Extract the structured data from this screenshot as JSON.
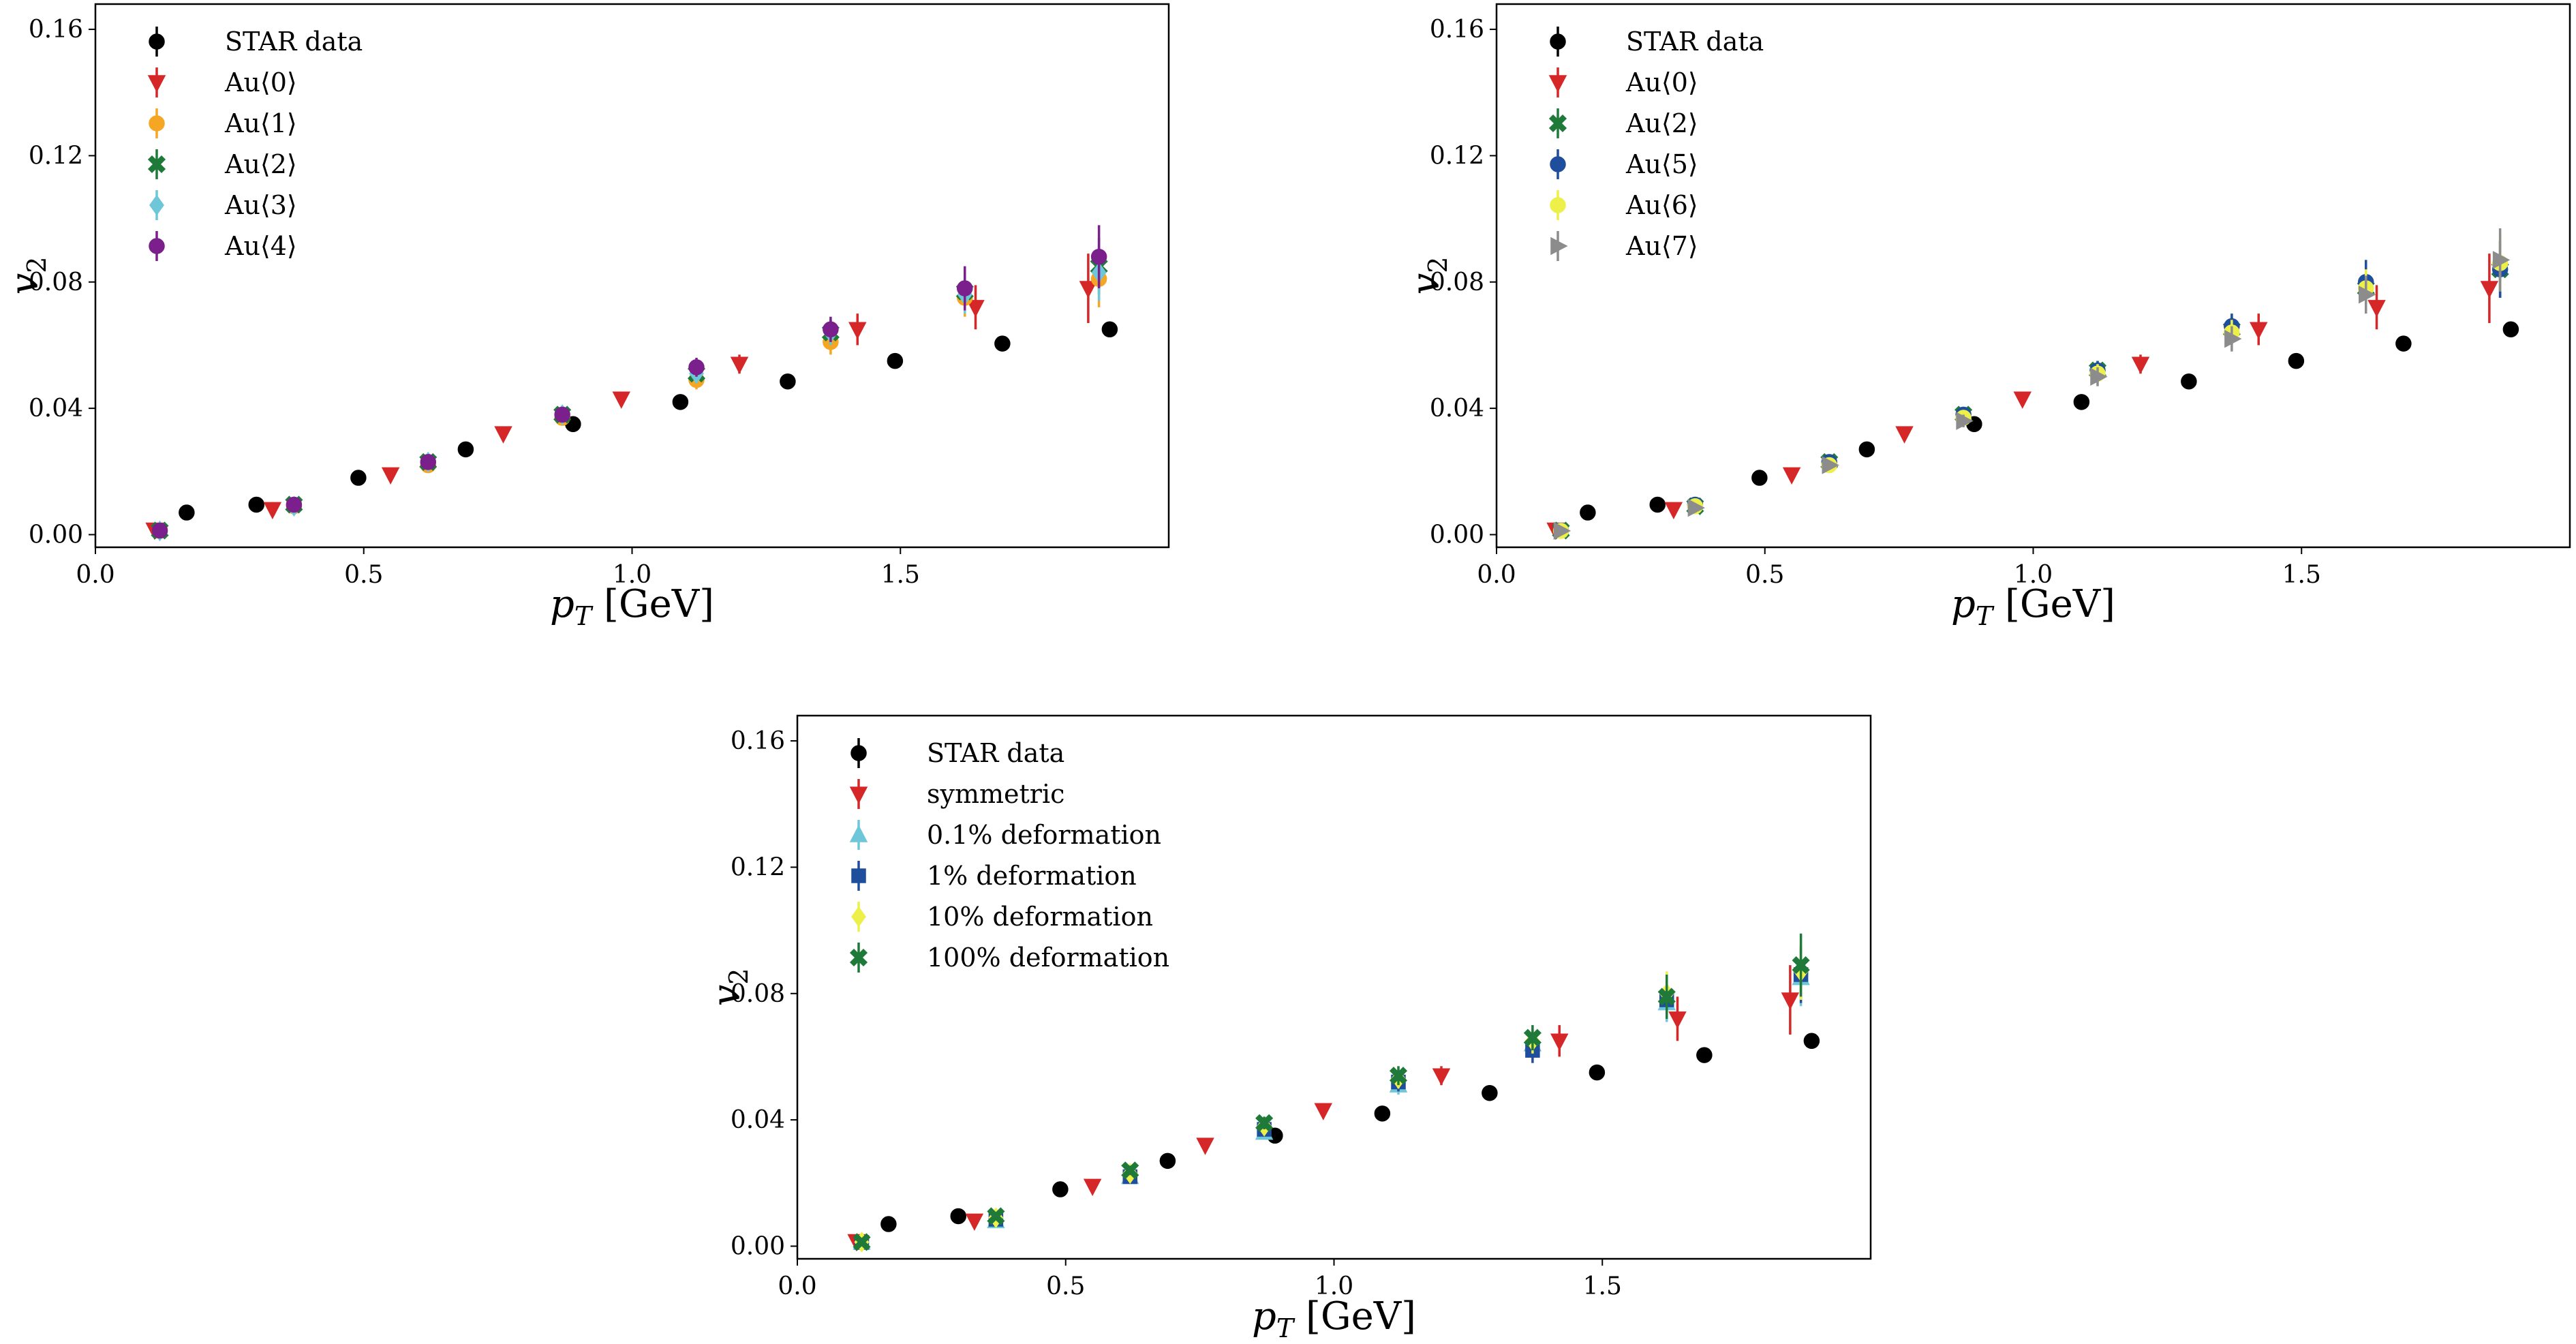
{
  "chart_data": [
    {
      "type": "scatter",
      "xlabel": "p_T [GeV]",
      "ylabel": "v_2",
      "xlim": [
        0.0,
        2.0
      ],
      "ylim": [
        -0.004,
        0.168
      ],
      "xticks": [
        {
          "value": 0.0,
          "label": "0.0"
        },
        {
          "value": 0.5,
          "label": "0.5"
        },
        {
          "value": 1.0,
          "label": "1.0"
        },
        {
          "value": 1.5,
          "label": "1.5"
        }
      ],
      "yticks": [
        {
          "value": 0.0,
          "label": "0.00"
        },
        {
          "value": 0.04,
          "label": "0.04"
        },
        {
          "value": 0.08,
          "label": "0.08"
        },
        {
          "value": 0.12,
          "label": "0.12"
        },
        {
          "value": 0.16,
          "label": "0.16"
        }
      ],
      "legend_position": "top-left",
      "grid": false,
      "series": [
        {
          "name": "STAR data",
          "color": "#000000",
          "marker": "circle",
          "x": [
            0.17,
            0.3,
            0.49,
            0.69,
            0.89,
            1.09,
            1.29,
            1.49,
            1.69,
            1.89
          ],
          "y": [
            0.007,
            0.0095,
            0.018,
            0.027,
            0.035,
            0.042,
            0.0485,
            0.055,
            0.0605,
            0.065
          ],
          "err": [
            0.0005,
            0.0005,
            0.0005,
            0.0005,
            0.0005,
            0.0005,
            0.0005,
            0.0005,
            0.0005,
            0.0005
          ]
        },
        {
          "name": "Au⟨0⟩",
          "color": "#d62728",
          "marker": "triangle-down",
          "x": [
            0.11,
            0.33,
            0.55,
            0.76,
            0.98,
            1.2,
            1.42,
            1.64,
            1.85
          ],
          "y": [
            0.0015,
            0.008,
            0.019,
            0.032,
            0.043,
            0.054,
            0.065,
            0.072,
            0.078
          ],
          "err": [
            0.0006,
            0.0008,
            0.0012,
            0.0015,
            0.002,
            0.003,
            0.005,
            0.007,
            0.011
          ]
        },
        {
          "name": "Au⟨1⟩",
          "color": "#f5a623",
          "marker": "circle",
          "x": [
            0.12,
            0.37,
            0.62,
            0.87,
            1.12,
            1.37,
            1.62,
            1.87
          ],
          "y": [
            0.0012,
            0.009,
            0.022,
            0.037,
            0.049,
            0.061,
            0.075,
            0.081
          ],
          "err": [
            0.0005,
            0.001,
            0.0015,
            0.002,
            0.003,
            0.004,
            0.006,
            0.009
          ]
        },
        {
          "name": "Au⟨2⟩",
          "color": "#1f7a3a",
          "marker": "x-thick",
          "x": [
            0.12,
            0.37,
            0.62,
            0.87,
            1.12,
            1.37,
            1.62,
            1.87
          ],
          "y": [
            0.0013,
            0.0095,
            0.023,
            0.038,
            0.051,
            0.064,
            0.077,
            0.085
          ],
          "err": [
            0.0005,
            0.001,
            0.0015,
            0.002,
            0.003,
            0.004,
            0.006,
            0.009
          ]
        },
        {
          "name": "Au⟨3⟩",
          "color": "#6ec6d9",
          "marker": "diamond",
          "x": [
            0.12,
            0.37,
            0.62,
            0.87,
            1.12,
            1.37,
            1.62,
            1.87
          ],
          "y": [
            0.0012,
            0.009,
            0.023,
            0.038,
            0.051,
            0.064,
            0.076,
            0.083
          ],
          "err": [
            0.0005,
            0.001,
            0.0015,
            0.002,
            0.003,
            0.004,
            0.006,
            0.009
          ]
        },
        {
          "name": "Au⟨4⟩",
          "color": "#7b1f8c",
          "marker": "circle",
          "x": [
            0.12,
            0.37,
            0.62,
            0.87,
            1.12,
            1.37,
            1.62,
            1.87
          ],
          "y": [
            0.0013,
            0.0095,
            0.023,
            0.038,
            0.053,
            0.065,
            0.078,
            0.088
          ],
          "err": [
            0.0005,
            0.001,
            0.0015,
            0.002,
            0.003,
            0.004,
            0.007,
            0.01
          ]
        }
      ]
    },
    {
      "type": "scatter",
      "xlabel": "p_T [GeV]",
      "ylabel": "v_2",
      "xlim": [
        0.0,
        2.0
      ],
      "ylim": [
        -0.004,
        0.168
      ],
      "xticks": [
        {
          "value": 0.0,
          "label": "0.0"
        },
        {
          "value": 0.5,
          "label": "0.5"
        },
        {
          "value": 1.0,
          "label": "1.0"
        },
        {
          "value": 1.5,
          "label": "1.5"
        }
      ],
      "yticks": [
        {
          "value": 0.0,
          "label": "0.00"
        },
        {
          "value": 0.04,
          "label": "0.04"
        },
        {
          "value": 0.08,
          "label": "0.08"
        },
        {
          "value": 0.12,
          "label": "0.12"
        },
        {
          "value": 0.16,
          "label": "0.16"
        }
      ],
      "legend_position": "top-left",
      "grid": false,
      "series": [
        {
          "name": "STAR data",
          "color": "#000000",
          "marker": "circle",
          "x": [
            0.17,
            0.3,
            0.49,
            0.69,
            0.89,
            1.09,
            1.29,
            1.49,
            1.69,
            1.89
          ],
          "y": [
            0.007,
            0.0095,
            0.018,
            0.027,
            0.035,
            0.042,
            0.0485,
            0.055,
            0.0605,
            0.065
          ],
          "err": [
            0.0005,
            0.0005,
            0.0005,
            0.0005,
            0.0005,
            0.0005,
            0.0005,
            0.0005,
            0.0005,
            0.0005
          ]
        },
        {
          "name": "Au⟨0⟩",
          "color": "#d62728",
          "marker": "triangle-down",
          "x": [
            0.11,
            0.33,
            0.55,
            0.76,
            0.98,
            1.2,
            1.42,
            1.64,
            1.85
          ],
          "y": [
            0.0015,
            0.008,
            0.019,
            0.032,
            0.043,
            0.054,
            0.065,
            0.072,
            0.078
          ],
          "err": [
            0.0006,
            0.0008,
            0.0012,
            0.0015,
            0.002,
            0.003,
            0.005,
            0.007,
            0.011
          ]
        },
        {
          "name": "Au⟨2⟩",
          "color": "#1f7a3a",
          "marker": "x-thick",
          "x": [
            0.12,
            0.37,
            0.62,
            0.87,
            1.12,
            1.37,
            1.62,
            1.87
          ],
          "y": [
            0.0013,
            0.009,
            0.023,
            0.038,
            0.052,
            0.065,
            0.078,
            0.084
          ],
          "err": [
            0.0005,
            0.001,
            0.0015,
            0.002,
            0.003,
            0.004,
            0.006,
            0.009
          ]
        },
        {
          "name": "Au⟨5⟩",
          "color": "#1f4e9c",
          "marker": "circle",
          "x": [
            0.12,
            0.37,
            0.62,
            0.87,
            1.12,
            1.37,
            1.62,
            1.87
          ],
          "y": [
            0.0013,
            0.0095,
            0.023,
            0.038,
            0.052,
            0.066,
            0.08,
            0.084
          ],
          "err": [
            0.0005,
            0.001,
            0.0015,
            0.002,
            0.003,
            0.004,
            0.007,
            0.009
          ]
        },
        {
          "name": "Au⟨6⟩",
          "color": "#eef04a",
          "marker": "circle",
          "x": [
            0.12,
            0.37,
            0.62,
            0.87,
            1.12,
            1.37,
            1.62,
            1.87
          ],
          "y": [
            0.0012,
            0.009,
            0.022,
            0.037,
            0.051,
            0.064,
            0.078,
            0.086
          ],
          "err": [
            0.0005,
            0.001,
            0.0015,
            0.002,
            0.003,
            0.004,
            0.006,
            0.009
          ]
        },
        {
          "name": "Au⟨7⟩",
          "color": "#8c8c8c",
          "marker": "triangle-right",
          "x": [
            0.12,
            0.37,
            0.62,
            0.87,
            1.12,
            1.37,
            1.62,
            1.87
          ],
          "y": [
            0.0012,
            0.0085,
            0.022,
            0.036,
            0.05,
            0.062,
            0.076,
            0.087
          ],
          "err": [
            0.0005,
            0.001,
            0.0015,
            0.002,
            0.003,
            0.004,
            0.006,
            0.01
          ]
        }
      ]
    },
    {
      "type": "scatter",
      "xlabel": "p_T [GeV]",
      "ylabel": "v_2",
      "xlim": [
        0.0,
        2.0
      ],
      "ylim": [
        -0.004,
        0.168
      ],
      "xticks": [
        {
          "value": 0.0,
          "label": "0.0"
        },
        {
          "value": 0.5,
          "label": "0.5"
        },
        {
          "value": 1.0,
          "label": "1.0"
        },
        {
          "value": 1.5,
          "label": "1.5"
        }
      ],
      "yticks": [
        {
          "value": 0.0,
          "label": "0.00"
        },
        {
          "value": 0.04,
          "label": "0.04"
        },
        {
          "value": 0.08,
          "label": "0.08"
        },
        {
          "value": 0.12,
          "label": "0.12"
        },
        {
          "value": 0.16,
          "label": "0.16"
        }
      ],
      "legend_position": "top-left",
      "grid": false,
      "series": [
        {
          "name": "STAR data",
          "color": "#000000",
          "marker": "circle",
          "x": [
            0.17,
            0.3,
            0.49,
            0.69,
            0.89,
            1.09,
            1.29,
            1.49,
            1.69,
            1.89
          ],
          "y": [
            0.007,
            0.0095,
            0.018,
            0.027,
            0.035,
            0.042,
            0.0485,
            0.055,
            0.0605,
            0.065
          ],
          "err": [
            0.0005,
            0.0005,
            0.0005,
            0.0005,
            0.0005,
            0.0005,
            0.0005,
            0.0005,
            0.0005,
            0.0005
          ]
        },
        {
          "name": "symmetric",
          "color": "#d62728",
          "marker": "triangle-down",
          "x": [
            0.11,
            0.33,
            0.55,
            0.76,
            0.98,
            1.2,
            1.42,
            1.64,
            1.85
          ],
          "y": [
            0.0015,
            0.008,
            0.019,
            0.032,
            0.043,
            0.054,
            0.065,
            0.072,
            0.078
          ],
          "err": [
            0.0006,
            0.0008,
            0.0012,
            0.0015,
            0.002,
            0.003,
            0.005,
            0.007,
            0.011
          ]
        },
        {
          "name": "0.1% deformation",
          "color": "#6ec6d9",
          "marker": "triangle-up",
          "x": [
            0.12,
            0.37,
            0.62,
            0.87,
            1.12,
            1.37,
            1.62,
            1.87
          ],
          "y": [
            0.0012,
            0.008,
            0.022,
            0.036,
            0.051,
            0.064,
            0.077,
            0.085
          ],
          "err": [
            0.0005,
            0.001,
            0.0015,
            0.002,
            0.003,
            0.004,
            0.006,
            0.009
          ]
        },
        {
          "name": "1% deformation",
          "color": "#1f4e9c",
          "marker": "square",
          "x": [
            0.12,
            0.37,
            0.62,
            0.87,
            1.12,
            1.37,
            1.62,
            1.87
          ],
          "y": [
            0.0012,
            0.0085,
            0.022,
            0.037,
            0.052,
            0.062,
            0.078,
            0.086
          ],
          "err": [
            0.0005,
            0.001,
            0.0015,
            0.002,
            0.003,
            0.004,
            0.006,
            0.009
          ]
        },
        {
          "name": "10% deformation",
          "color": "#eef04a",
          "marker": "diamond",
          "x": [
            0.12,
            0.37,
            0.62,
            0.87,
            1.12,
            1.37,
            1.62,
            1.87
          ],
          "y": [
            0.0013,
            0.009,
            0.023,
            0.038,
            0.053,
            0.065,
            0.08,
            0.087
          ],
          "err": [
            0.0005,
            0.001,
            0.0015,
            0.002,
            0.003,
            0.004,
            0.007,
            0.009
          ]
        },
        {
          "name": "100% deformation",
          "color": "#1f7a3a",
          "marker": "x-thick",
          "x": [
            0.12,
            0.37,
            0.62,
            0.87,
            1.12,
            1.37,
            1.62,
            1.87
          ],
          "y": [
            0.0013,
            0.0095,
            0.024,
            0.039,
            0.054,
            0.066,
            0.079,
            0.089
          ],
          "err": [
            0.0005,
            0.001,
            0.0015,
            0.002,
            0.003,
            0.004,
            0.007,
            0.01
          ]
        }
      ]
    }
  ]
}
